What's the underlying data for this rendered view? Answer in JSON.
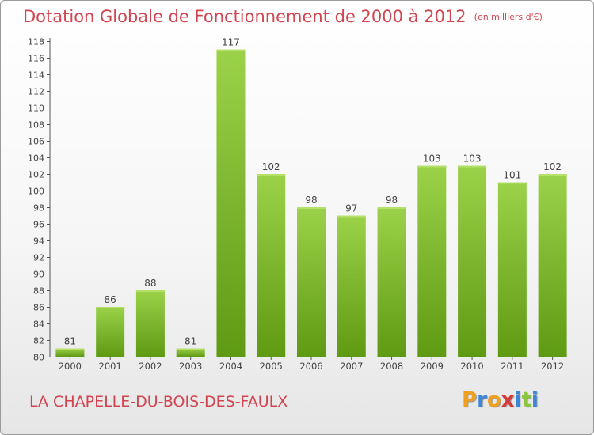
{
  "header": {
    "title": "Dotation Globale de Fonctionnement de 2000 à 2012",
    "unit": "(en milliers d'€)"
  },
  "footer": {
    "commune": "LA CHAPELLE-DU-BOIS-DES-FAULX"
  },
  "logo": {
    "letters": [
      "P",
      "r",
      "o",
      "x",
      "i",
      "t",
      "i"
    ],
    "colors": [
      "#f0a020",
      "#3a86d8",
      "#f0a020",
      "#d83a3a",
      "#3a86d8",
      "#8cc63f",
      "#3a86d8"
    ]
  },
  "chart_data": {
    "type": "bar",
    "title": "Dotation Globale de Fonctionnement de 2000 à 2012",
    "subtitle": "(en milliers d'€)",
    "xlabel": "",
    "ylabel": "",
    "categories": [
      "2000",
      "2001",
      "2002",
      "2003",
      "2004",
      "2005",
      "2006",
      "2007",
      "2008",
      "2009",
      "2010",
      "2011",
      "2012"
    ],
    "values": [
      81,
      86,
      88,
      81,
      117,
      102,
      98,
      97,
      98,
      103,
      103,
      101,
      102
    ],
    "ylim": [
      80,
      118
    ],
    "yticks": [
      80,
      82,
      84,
      86,
      88,
      90,
      92,
      94,
      96,
      98,
      100,
      102,
      104,
      106,
      108,
      110,
      112,
      114,
      116,
      118
    ],
    "grid": false,
    "legend": "none",
    "colors": {
      "bar_top": "#9bd24a",
      "bar_bottom": "#5e9a12",
      "label": "#444444",
      "axis": "#555555"
    }
  }
}
